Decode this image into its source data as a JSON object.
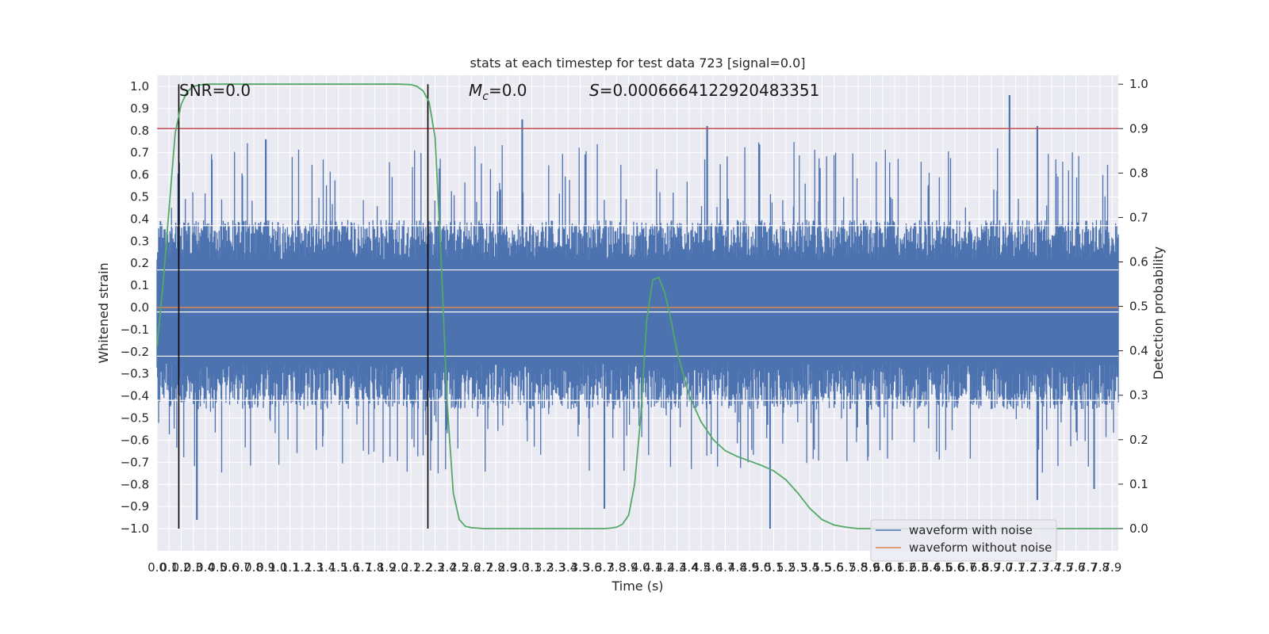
{
  "chart_data": {
    "type": "line",
    "title": "stats at each timestep for test data 723 [signal=0.0]",
    "xlabel": "Time (s)",
    "ylabel": "Whitened strain",
    "ylabel_right": "Detection probability",
    "xlim": [
      0,
      7.95
    ],
    "ylim": [
      -1.1,
      1.05
    ],
    "ylim_right": [
      -0.05,
      1.02
    ],
    "x_ticks": [
      0.0,
      0.1,
      0.2,
      0.3,
      0.4,
      0.5,
      0.6,
      0.7,
      0.8,
      0.9,
      1.0,
      1.1,
      1.2,
      1.3,
      1.4,
      1.5,
      1.6,
      1.7,
      1.8,
      1.9,
      2.0,
      2.1,
      2.2,
      2.3,
      2.4,
      2.5,
      2.6,
      2.7,
      2.8,
      2.9,
      3.0,
      3.1,
      3.2,
      3.3,
      3.4,
      3.5,
      3.6,
      3.7,
      3.8,
      3.9,
      4.0,
      4.1,
      4.2,
      4.3,
      4.4,
      4.5,
      4.6,
      4.7,
      4.8,
      4.9,
      5.0,
      5.1,
      5.2,
      5.3,
      5.4,
      5.5,
      5.6,
      5.7,
      5.8,
      5.9,
      6.0,
      6.1,
      6.2,
      6.3,
      6.4,
      6.5,
      6.6,
      6.7,
      6.8,
      6.9,
      7.0,
      7.1,
      7.2,
      7.3,
      7.4,
      7.5,
      7.6,
      7.7,
      7.8,
      7.9
    ],
    "y_ticks_left": [
      -1.0,
      -0.9,
      -0.8,
      -0.7,
      -0.6,
      -0.5,
      -0.4,
      -0.3,
      -0.2,
      -0.1,
      0.0,
      0.1,
      0.2,
      0.3,
      0.4,
      0.5,
      0.6,
      0.7,
      0.8,
      0.9,
      1.0
    ],
    "y_ticks_right": [
      0.0,
      0.1,
      0.2,
      0.3,
      0.4,
      0.5,
      0.6,
      0.7,
      0.8,
      0.9,
      1.0
    ],
    "annotations": {
      "snr": "SNR=0.0",
      "mc_symbol": "M",
      "mc_sub": "c",
      "mc_value": "=0.0",
      "s_symbol": "S",
      "s_value": "=0.0006664122920483351"
    },
    "vlines_x": [
      0.18,
      2.24
    ],
    "threshold_right": 0.9,
    "grid": true,
    "legend": {
      "position": "lower-right",
      "entries": [
        {
          "label": "waveform with noise",
          "color": "#4c72b0"
        },
        {
          "label": "waveform without noise",
          "color": "#dd8452"
        }
      ]
    },
    "series": [
      {
        "name": "waveform with noise",
        "axis": "left",
        "color": "#4c72b0",
        "kind": "noise",
        "band": [
          -0.42,
          0.36
        ],
        "peaks_max": [
          [
            3.02,
            0.85
          ],
          [
            4.55,
            0.82
          ],
          [
            7.05,
            0.96
          ],
          [
            7.28,
            0.82
          ],
          [
            0.9,
            0.76
          ]
        ],
        "peaks_min": [
          [
            0.33,
            -0.96
          ],
          [
            3.7,
            -0.91
          ],
          [
            5.07,
            -1.0
          ],
          [
            7.28,
            -0.87
          ],
          [
            7.75,
            -0.82
          ]
        ]
      },
      {
        "name": "waveform without noise",
        "axis": "left",
        "color": "#dd8452",
        "y": 0.0
      },
      {
        "name": "detection probability",
        "axis": "right",
        "color": "#55a868",
        "x": [
          0.0,
          0.05,
          0.1,
          0.15,
          0.2,
          0.25,
          0.3,
          0.35,
          0.4,
          0.5,
          0.6,
          1.0,
          1.5,
          2.0,
          2.1,
          2.15,
          2.2,
          2.25,
          2.3,
          2.35,
          2.4,
          2.45,
          2.5,
          2.55,
          2.6,
          2.65,
          2.7,
          2.8,
          3.0,
          3.5,
          3.6,
          3.7,
          3.75,
          3.8,
          3.85,
          3.9,
          3.95,
          4.0,
          4.05,
          4.1,
          4.15,
          4.2,
          4.25,
          4.3,
          4.4,
          4.5,
          4.6,
          4.7,
          4.8,
          4.9,
          5.0,
          5.1,
          5.2,
          5.3,
          5.4,
          5.5,
          5.6,
          5.7,
          5.8,
          6.0,
          6.5,
          7.0,
          7.5,
          7.95
        ],
        "y": [
          0.41,
          0.55,
          0.72,
          0.89,
          0.955,
          0.983,
          0.995,
          0.998,
          1.0,
          1.0,
          1.0,
          1.0,
          1.0,
          1.0,
          0.999,
          0.995,
          0.985,
          0.96,
          0.88,
          0.6,
          0.28,
          0.08,
          0.02,
          0.005,
          0.002,
          0.001,
          0.0,
          0.0,
          0.0,
          0.0,
          0.0,
          0.0,
          0.001,
          0.003,
          0.01,
          0.03,
          0.1,
          0.25,
          0.47,
          0.56,
          0.565,
          0.53,
          0.47,
          0.4,
          0.3,
          0.24,
          0.2,
          0.175,
          0.162,
          0.152,
          0.142,
          0.13,
          0.11,
          0.08,
          0.045,
          0.02,
          0.008,
          0.003,
          0.0,
          0.0,
          0.0,
          0.0,
          0.0,
          0.0
        ]
      },
      {
        "name": "threshold",
        "axis": "right",
        "color": "#c44e52",
        "y": 0.9
      }
    ]
  }
}
